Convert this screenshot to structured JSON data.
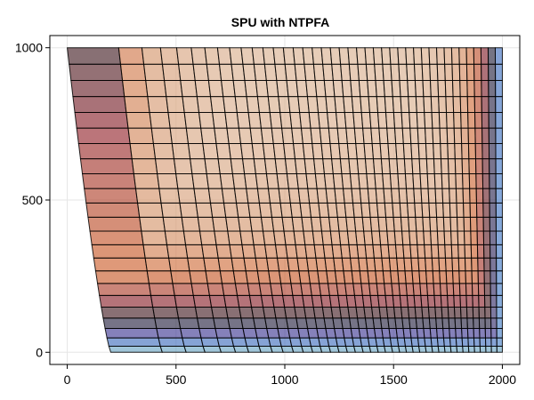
{
  "chart_data": {
    "type": "heatmap",
    "title": "SPU with NTPFA",
    "xlabel": "",
    "ylabel": "",
    "xlim": [
      -80,
      2080
    ],
    "ylim": [
      -40,
      1040
    ],
    "xticks": [
      0,
      500,
      1000,
      1500,
      2000
    ],
    "yticks": [
      0,
      500,
      1000
    ],
    "grid": true,
    "mesh": {
      "columns": 40,
      "rows": 23,
      "domain_x": [
        0,
        2000
      ],
      "domain_y": [
        0,
        1000
      ],
      "top_shear": 0.3,
      "bottom_shift": 0.1
    },
    "colormap": [
      "#7fbfbf",
      "#3b73c3",
      "#3a2f8c",
      "#171719",
      "#8e1d28",
      "#cb5a24",
      "#d49166",
      "#d9b08f"
    ]
  }
}
